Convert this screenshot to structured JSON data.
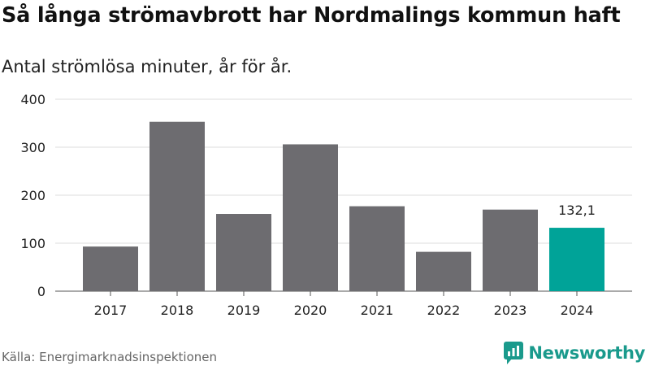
{
  "chart_data": {
    "type": "bar",
    "title": "Så långa strömavbrott har Nordmalings kommun haft",
    "subtitle": "Antal strömlösa minuter, år för år.",
    "categories": [
      "2017",
      "2018",
      "2019",
      "2020",
      "2021",
      "2022",
      "2023",
      "2024"
    ],
    "values": [
      93,
      353,
      161,
      306,
      177,
      82,
      170,
      132.1
    ],
    "ylim": [
      0,
      400
    ],
    "yticks": [
      0,
      100,
      200,
      300,
      400
    ],
    "grid": true,
    "colors": {
      "default": "#6d6c70",
      "highlight": "#00a398"
    },
    "highlight_index": 7,
    "data_labels": [
      {
        "index": 7,
        "text": "132,1"
      }
    ]
  },
  "footer": {
    "source": "Källa: Energimarknadsinspektionen",
    "brand": "Newsworthy",
    "brand_icon": "newsworthy-logo-icon"
  }
}
